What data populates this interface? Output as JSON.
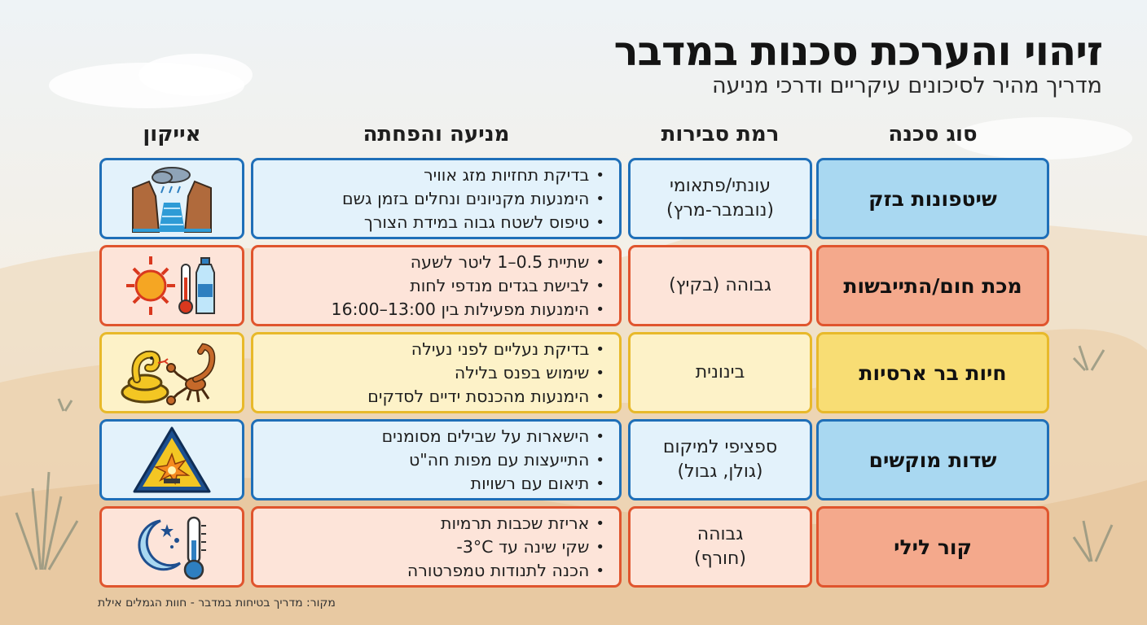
{
  "header": {
    "title": "זיהוי והערכת סכנות במדבר",
    "subtitle": "מדריך מהיר לסיכונים עיקריים ודרכי מניעה"
  },
  "columns": {
    "type": "סוג סכנה",
    "probability": "רמת סבירות",
    "prevention": "מניעה והפחתה",
    "icon": "אייקון"
  },
  "colors": {
    "blue": "#1f6fb8",
    "orange": "#e0552e",
    "yellow": "#e8b92a",
    "blue_fill": "#a9d8f1",
    "orange_fill": "#f4a98c",
    "yellow_fill": "#f8dd74"
  },
  "rows": [
    {
      "type": "שיטפונות בזק",
      "probability": [
        "עונתי/פתאומי",
        "(נובמבר-מרץ)"
      ],
      "prevention": [
        "בדיקת תחזיות מזג אוויר",
        "הימנעות מקניונים ונחלים בזמן גשם",
        "טיפוס לשטח גבוה במידת הצורך"
      ],
      "icon": "flood-canyon-icon",
      "theme": "blue"
    },
    {
      "type": "מכת חום/התייבשות",
      "probability": [
        "גבוהה (בקיץ)"
      ],
      "prevention": [
        "שתיית 0.5–1 ליטר לשעה",
        "לבישת בגדים מנדפי לחות",
        "הימנעות מפעילות בין 13:00–16:00"
      ],
      "icon": "sun-thermometer-bottle-icon",
      "theme": "orange"
    },
    {
      "type": "חיות בר ארסיות",
      "probability": [
        "בינונית"
      ],
      "prevention": [
        "בדיקת נעליים לפני נעילה",
        "שימוש בפנס בלילה",
        "הימנעות מהכנסת ידיים לסדקים"
      ],
      "icon": "snake-scorpion-icon",
      "theme": "yellow"
    },
    {
      "type": "שדות מוקשים",
      "probability": [
        "ספציפי למיקום",
        "(גולן, גבול)"
      ],
      "prevention": [
        "הישארות על שבילים מסומנים",
        "התייעצות עם מפות חה\"ט",
        "תיאום עם רשויות"
      ],
      "icon": "explosion-warning-icon",
      "theme": "blue"
    },
    {
      "type": "קור לילי",
      "probability": [
        "גבוהה",
        "(חורף)"
      ],
      "prevention": [
        "אריזת שכבות תרמיות",
        "שקי שינה עד 3°C-",
        "הכנה לתנודות טמפרטורה"
      ],
      "icon": "moon-thermometer-icon",
      "theme": "orange"
    }
  ],
  "footer": {
    "source": "מקור: מדריך בטיחות במדבר - חוות הגמלים אילת"
  }
}
